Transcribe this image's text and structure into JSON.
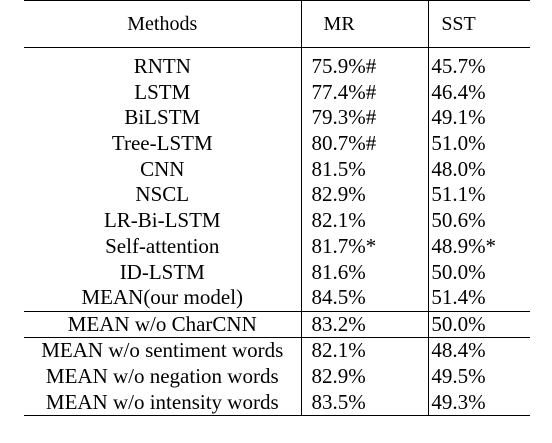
{
  "table": {
    "headers": {
      "method": "Methods",
      "mr": "MR",
      "sst": "SST"
    },
    "baseline_rows": [
      {
        "method": "RNTN",
        "mr": "75.9%#",
        "sst": "45.7%"
      },
      {
        "method": "LSTM",
        "mr": "77.4%#",
        "sst": "46.4%"
      },
      {
        "method": "BiLSTM",
        "mr": "79.3%#",
        "sst": "49.1%"
      },
      {
        "method": "Tree-LSTM",
        "mr": "80.7%#",
        "sst": "51.0%"
      },
      {
        "method": "CNN",
        "mr": "81.5%",
        "sst": "48.0%"
      },
      {
        "method": "NSCL",
        "mr": "82.9%",
        "sst": "51.1%"
      },
      {
        "method": "LR-Bi-LSTM",
        "mr": "82.1%",
        "sst": "50.6%"
      },
      {
        "method": "Self-attention",
        "mr": "81.7%*",
        "sst": "48.9%*"
      },
      {
        "method": "ID-LSTM",
        "mr": "81.6%",
        "sst": "50.0%"
      },
      {
        "method": "MEAN(our model)",
        "mr": "84.5%",
        "sst": "51.4%"
      }
    ],
    "ablation_first": {
      "method": "MEAN w/o CharCNN",
      "mr": "83.2%",
      "sst": "50.0%"
    },
    "ablation_rows": [
      {
        "method": "MEAN w/o sentiment words",
        "mr": "82.1%",
        "sst": "48.4%"
      },
      {
        "method": "MEAN w/o negation words",
        "mr": "82.9%",
        "sst": "49.5%"
      },
      {
        "method": "MEAN w/o intensity words",
        "mr": "83.5%",
        "sst": "49.3%"
      }
    ]
  }
}
